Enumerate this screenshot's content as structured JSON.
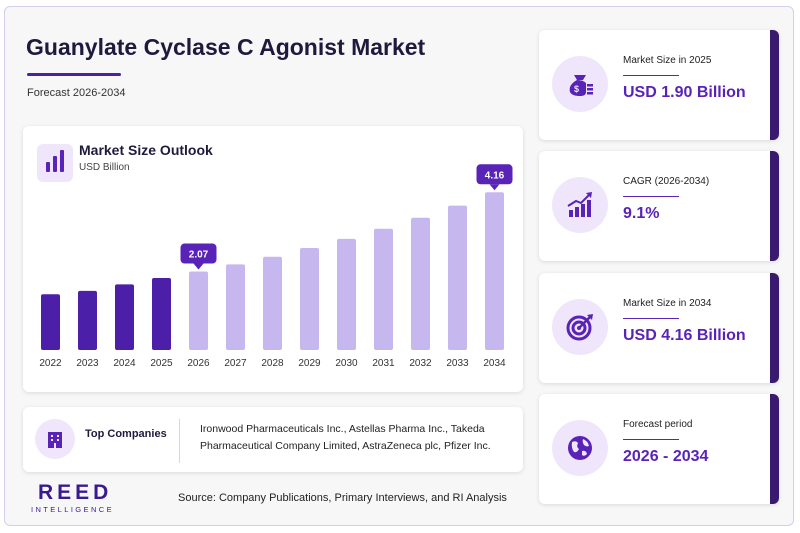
{
  "header": {
    "title": "Guanylate Cyclase C Agonist Market",
    "subtitle": "Forecast 2026-2034"
  },
  "chart": {
    "title": "Market Size Outlook",
    "unit": "USD Billion"
  },
  "chart_data": {
    "type": "bar",
    "title": "Market Size Outlook",
    "ylabel": "USD Billion",
    "categories": [
      "2022",
      "2023",
      "2024",
      "2025",
      "2026",
      "2027",
      "2028",
      "2029",
      "2030",
      "2031",
      "2032",
      "2033",
      "2034"
    ],
    "values": [
      1.47,
      1.56,
      1.73,
      1.9,
      2.07,
      2.26,
      2.46,
      2.69,
      2.93,
      3.2,
      3.49,
      3.81,
      4.16
    ],
    "ylim": [
      0,
      4.3
    ],
    "grid": false,
    "historical_color": "#4b1fa8",
    "forecast_color": "#c6b8ef",
    "callouts": [
      {
        "category": "2026",
        "label": "2.07"
      },
      {
        "category": "2034",
        "label": "4.16"
      }
    ]
  },
  "companies": {
    "label": "Top Companies",
    "text": "Ironwood Pharmaceuticals Inc., Astellas Pharma Inc., Takeda Pharmaceutical Company Limited, AstraZeneca plc, Pfizer Inc."
  },
  "footer": {
    "logo_main": "REED",
    "logo_sub": "INTELLIGENCE",
    "source": "Source: Company Publications, Primary Interviews, and RI Analysis"
  },
  "stats": [
    {
      "label": "Market Size in 2025",
      "value": "USD 1.90 Billion",
      "icon": "money-bag-icon"
    },
    {
      "label": "CAGR (2026-2034)",
      "value": "9.1%",
      "icon": "growth-chart-icon"
    },
    {
      "label": "Market Size in 2034",
      "value": "USD 4.16 Billion",
      "icon": "target-icon"
    },
    {
      "label": "Forecast period",
      "value": "2026 - 2034",
      "icon": "globe-icon"
    }
  ],
  "colors": {
    "accent": "#5a23b8",
    "dark": "#3a1a6e",
    "light": "#efe6fb"
  }
}
